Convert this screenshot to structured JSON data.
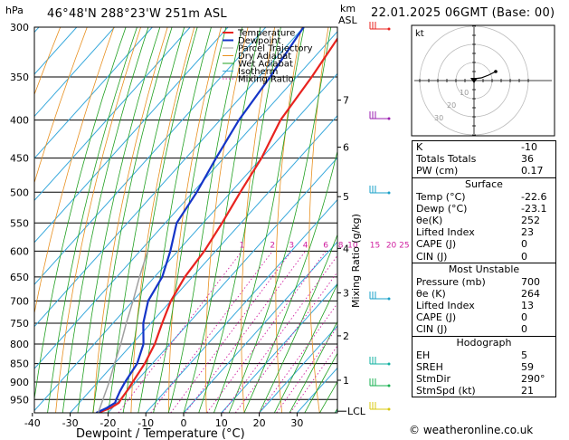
{
  "header": {
    "location": "46°48'N  288°23'W  251m  ASL",
    "datetime": "22.01.2025  06GMT  (Base: 00)",
    "hpa_label": "hPa",
    "km_label": "km",
    "asl_label": "ASL"
  },
  "chart_data": {
    "type": "line",
    "title": "Skew-T log-P sounding",
    "xlabel": "Dewpoint / Temperature (°C)",
    "ylabel_right": "Mixing Ratio (g/kg)",
    "x_ticks": [
      -40,
      -30,
      -20,
      -10,
      0,
      10,
      20,
      30
    ],
    "pressure_levels": [
      300,
      350,
      400,
      450,
      500,
      550,
      600,
      650,
      700,
      750,
      800,
      850,
      900,
      950
    ],
    "km_ticks": [
      {
        "label": "7",
        "p": 376
      },
      {
        "label": "6",
        "p": 435
      },
      {
        "label": "5",
        "p": 507
      },
      {
        "label": "4",
        "p": 595
      },
      {
        "label": "3",
        "p": 683
      },
      {
        "label": "2",
        "p": 780
      },
      {
        "label": "1",
        "p": 895
      }
    ],
    "lcl_label": "LCL",
    "lcl_p": 985,
    "mixing_ratio_labels": [
      "1",
      "2",
      "3",
      "4",
      "6",
      "8",
      "10",
      "15",
      "20",
      "25"
    ],
    "mixing_ratio_values": [
      1,
      2,
      3,
      4,
      6,
      8,
      10,
      15,
      20,
      25
    ],
    "legend": [
      "Temperature",
      "Dewpoint",
      "Parcel Trajectory",
      "Dry Adiabat",
      "Wet Adiabat",
      "Isotherm",
      "Mixing Ratio"
    ],
    "series": [
      {
        "name": "Temperature",
        "color": "#e8231f",
        "points": [
          [
            990,
            -22.6
          ],
          [
            975,
            -20.5
          ],
          [
            960,
            -19.5
          ],
          [
            950,
            -19.8
          ],
          [
            925,
            -20.2
          ],
          [
            900,
            -20.8
          ],
          [
            850,
            -22
          ],
          [
            800,
            -24
          ],
          [
            750,
            -27
          ],
          [
            700,
            -30
          ],
          [
            650,
            -32
          ],
          [
            600,
            -33
          ],
          [
            550,
            -35
          ],
          [
            500,
            -37.5
          ],
          [
            450,
            -40
          ],
          [
            400,
            -44
          ],
          [
            350,
            -46
          ],
          [
            300,
            -49
          ]
        ]
      },
      {
        "name": "Dewpoint",
        "color": "#1535c8",
        "points": [
          [
            990,
            -23.1
          ],
          [
            975,
            -21.5
          ],
          [
            960,
            -20.5
          ],
          [
            950,
            -21
          ],
          [
            925,
            -22
          ],
          [
            900,
            -22.8
          ],
          [
            850,
            -24
          ],
          [
            800,
            -27
          ],
          [
            750,
            -32
          ],
          [
            700,
            -36
          ],
          [
            650,
            -38
          ],
          [
            600,
            -42
          ],
          [
            550,
            -47
          ],
          [
            500,
            -49
          ],
          [
            450,
            -52
          ],
          [
            400,
            -55
          ],
          [
            350,
            -57
          ],
          [
            300,
            -60
          ]
        ]
      },
      {
        "name": "Parcel Trajectory",
        "color": "#a0a0a0",
        "points": [
          [
            990,
            -22.6
          ],
          [
            950,
            -24.5
          ],
          [
            900,
            -27
          ],
          [
            850,
            -30
          ],
          [
            800,
            -33
          ],
          [
            750,
            -36.5
          ],
          [
            700,
            -40
          ],
          [
            650,
            -44
          ],
          [
            600,
            -48
          ]
        ]
      }
    ]
  },
  "hodograph": {
    "unit_label": "kt",
    "ring_labels": [
      "10",
      "20",
      "30"
    ]
  },
  "indices": {
    "k_label": "K",
    "k_value": "-10",
    "tt_label": "Totals Totals",
    "tt_value": "36",
    "pw_label": "PW (cm)",
    "pw_value": "0.17"
  },
  "surface": {
    "title": "Surface",
    "temp_label": "Temp (°C)",
    "temp_value": "-22.6",
    "dewp_label": "Dewp (°C)",
    "dewp_value": "-23.1",
    "theta_label": "θe(K)",
    "theta_value": "252",
    "li_label": "Lifted Index",
    "li_value": "23",
    "cape_label": "CAPE (J)",
    "cape_value": "0",
    "cin_label": "CIN (J)",
    "cin_value": "0"
  },
  "most_unstable": {
    "title": "Most Unstable",
    "pres_label": "Pressure (mb)",
    "pres_value": "700",
    "theta_label": "θe (K)",
    "theta_value": "264",
    "li_label": "Lifted Index",
    "li_value": "13",
    "cape_label": "CAPE (J)",
    "cape_value": "0",
    "cin_label": "CIN (J)",
    "cin_value": "0"
  },
  "hodograph_table": {
    "title": "Hodograph",
    "eh_label": "EH",
    "eh_value": "5",
    "sreh_label": "SREH",
    "sreh_value": "59",
    "stmdir_label": "StmDir",
    "stmdir_value": "290°",
    "stmspd_label": "StmSpd (kt)",
    "stmspd_value": "21"
  },
  "footer": {
    "copyright": "© weatheronline.co.uk"
  }
}
